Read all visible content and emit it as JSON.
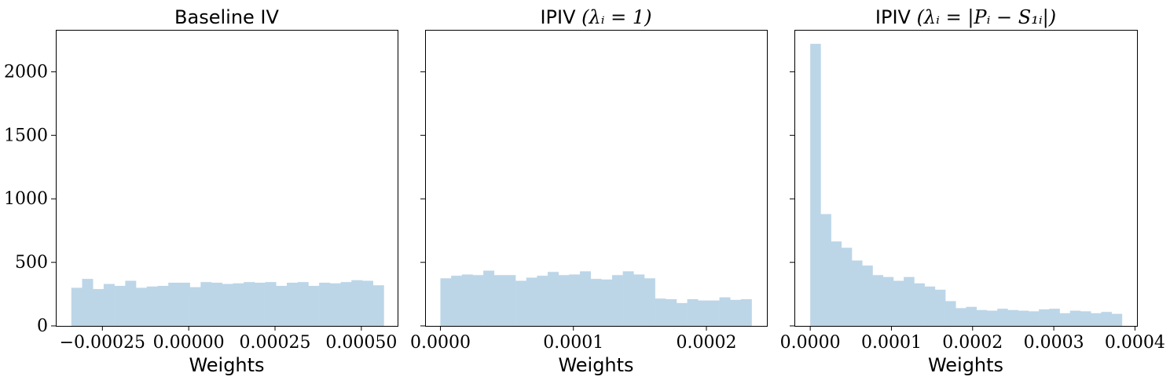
{
  "chart_data": [
    {
      "type": "bar",
      "title": "Baseline IV",
      "xlabel": "Weights",
      "ylabel": "",
      "xlim": [
        -0.000385,
        0.000605
      ],
      "ylim": [
        0,
        2330
      ],
      "bar_color": "#bcd6e8",
      "xticks": [
        -0.00025,
        0.0,
        0.00025,
        0.0005
      ],
      "xtick_labels": [
        "−0.00025",
        "0.00000",
        "0.00025",
        "0.00050"
      ],
      "yticks": [
        0,
        500,
        1000,
        1500,
        2000
      ],
      "ytick_labels": [
        "0",
        "500",
        "1000",
        "1500",
        "2000"
      ],
      "show_ytick_labels": true,
      "bin_start": -0.00034,
      "bin_end": 0.000565,
      "values": [
        300,
        370,
        290,
        330,
        315,
        355,
        300,
        310,
        315,
        340,
        340,
        305,
        345,
        340,
        330,
        335,
        345,
        340,
        345,
        315,
        340,
        345,
        315,
        340,
        335,
        345,
        360,
        355,
        320
      ]
    },
    {
      "type": "bar",
      "title": "IPIV",
      "title_math": "(λᵢ = 1)",
      "xlabel": "Weights",
      "ylabel": "",
      "xlim": [
        -1.15e-05,
        0.0002455
      ],
      "ylim": [
        0,
        2330
      ],
      "bar_color": "#bcd6e8",
      "xticks": [
        0.0,
        0.0001,
        0.0002
      ],
      "xtick_labels": [
        "0.0000",
        "0.0001",
        "0.0002"
      ],
      "yticks": [
        0,
        500,
        1000,
        1500,
        2000
      ],
      "ytick_labels": [
        "0",
        "500",
        "1000",
        "1500",
        "2000"
      ],
      "show_ytick_labels": false,
      "bin_start": 0.0,
      "bin_end": 0.000234,
      "values": [
        375,
        395,
        405,
        400,
        435,
        400,
        400,
        355,
        380,
        395,
        425,
        400,
        405,
        430,
        370,
        365,
        400,
        430,
        405,
        375,
        215,
        210,
        180,
        210,
        200,
        200,
        225,
        205,
        210
      ]
    },
    {
      "type": "bar",
      "title": "IPIV",
      "title_math": "(λᵢ = |Pᵢ − S₁ᵢ|)",
      "xlabel": "Weights",
      "ylabel": "",
      "xlim": [
        -1.95e-05,
        0.0004025
      ],
      "ylim": [
        0,
        2330
      ],
      "bar_color": "#bcd6e8",
      "xticks": [
        0.0,
        0.0001,
        0.0002,
        0.0003,
        0.0004
      ],
      "xtick_labels": [
        "0.0000",
        "0.0001",
        "0.0002",
        "0.0003",
        "0.0004"
      ],
      "yticks": [
        0,
        500,
        1000,
        1500,
        2000
      ],
      "ytick_labels": [
        "0",
        "500",
        "1000",
        "1500",
        "2000"
      ],
      "show_ytick_labels": false,
      "bin_start": 0.0,
      "bin_end": 0.000384,
      "values": [
        2220,
        880,
        665,
        615,
        515,
        475,
        400,
        385,
        355,
        385,
        335,
        310,
        285,
        195,
        140,
        150,
        125,
        120,
        135,
        125,
        120,
        115,
        130,
        135,
        100,
        120,
        115,
        100,
        110,
        95
      ]
    }
  ]
}
